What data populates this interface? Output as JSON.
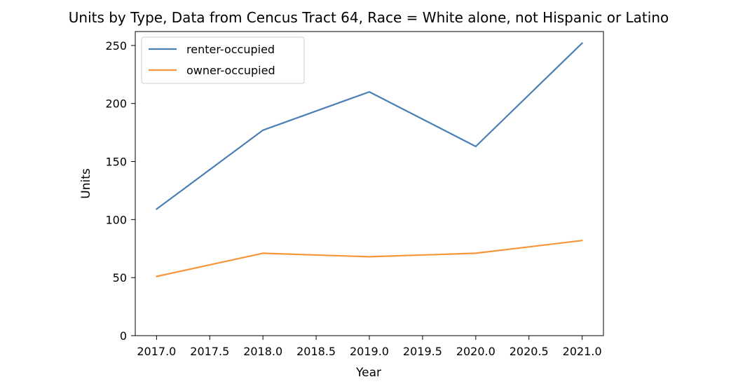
{
  "chart_data": {
    "type": "line",
    "title": "Units by Type, Data from Cencus Tract 64, Race = White alone, not Hispanic or Latino",
    "xlabel": "Year",
    "ylabel": "Units",
    "x": [
      2017,
      2018,
      2019,
      2020,
      2021
    ],
    "xlim": [
      2016.8,
      2021.2
    ],
    "ylim": [
      0,
      262
    ],
    "x_ticks": [
      "2017.0",
      "2017.5",
      "2018.0",
      "2018.5",
      "2019.0",
      "2019.5",
      "2020.0",
      "2020.5",
      "2021.0"
    ],
    "y_ticks": [
      "0",
      "50",
      "100",
      "150",
      "200",
      "250"
    ],
    "grid": false,
    "legend_position": "upper-left",
    "series": [
      {
        "name": "renter-occupied",
        "color": "#4a7fb5",
        "values": [
          109,
          177,
          210,
          163,
          252
        ]
      },
      {
        "name": "owner-occupied",
        "color": "#f5963a",
        "values": [
          51,
          71,
          68,
          71,
          82
        ]
      }
    ]
  }
}
